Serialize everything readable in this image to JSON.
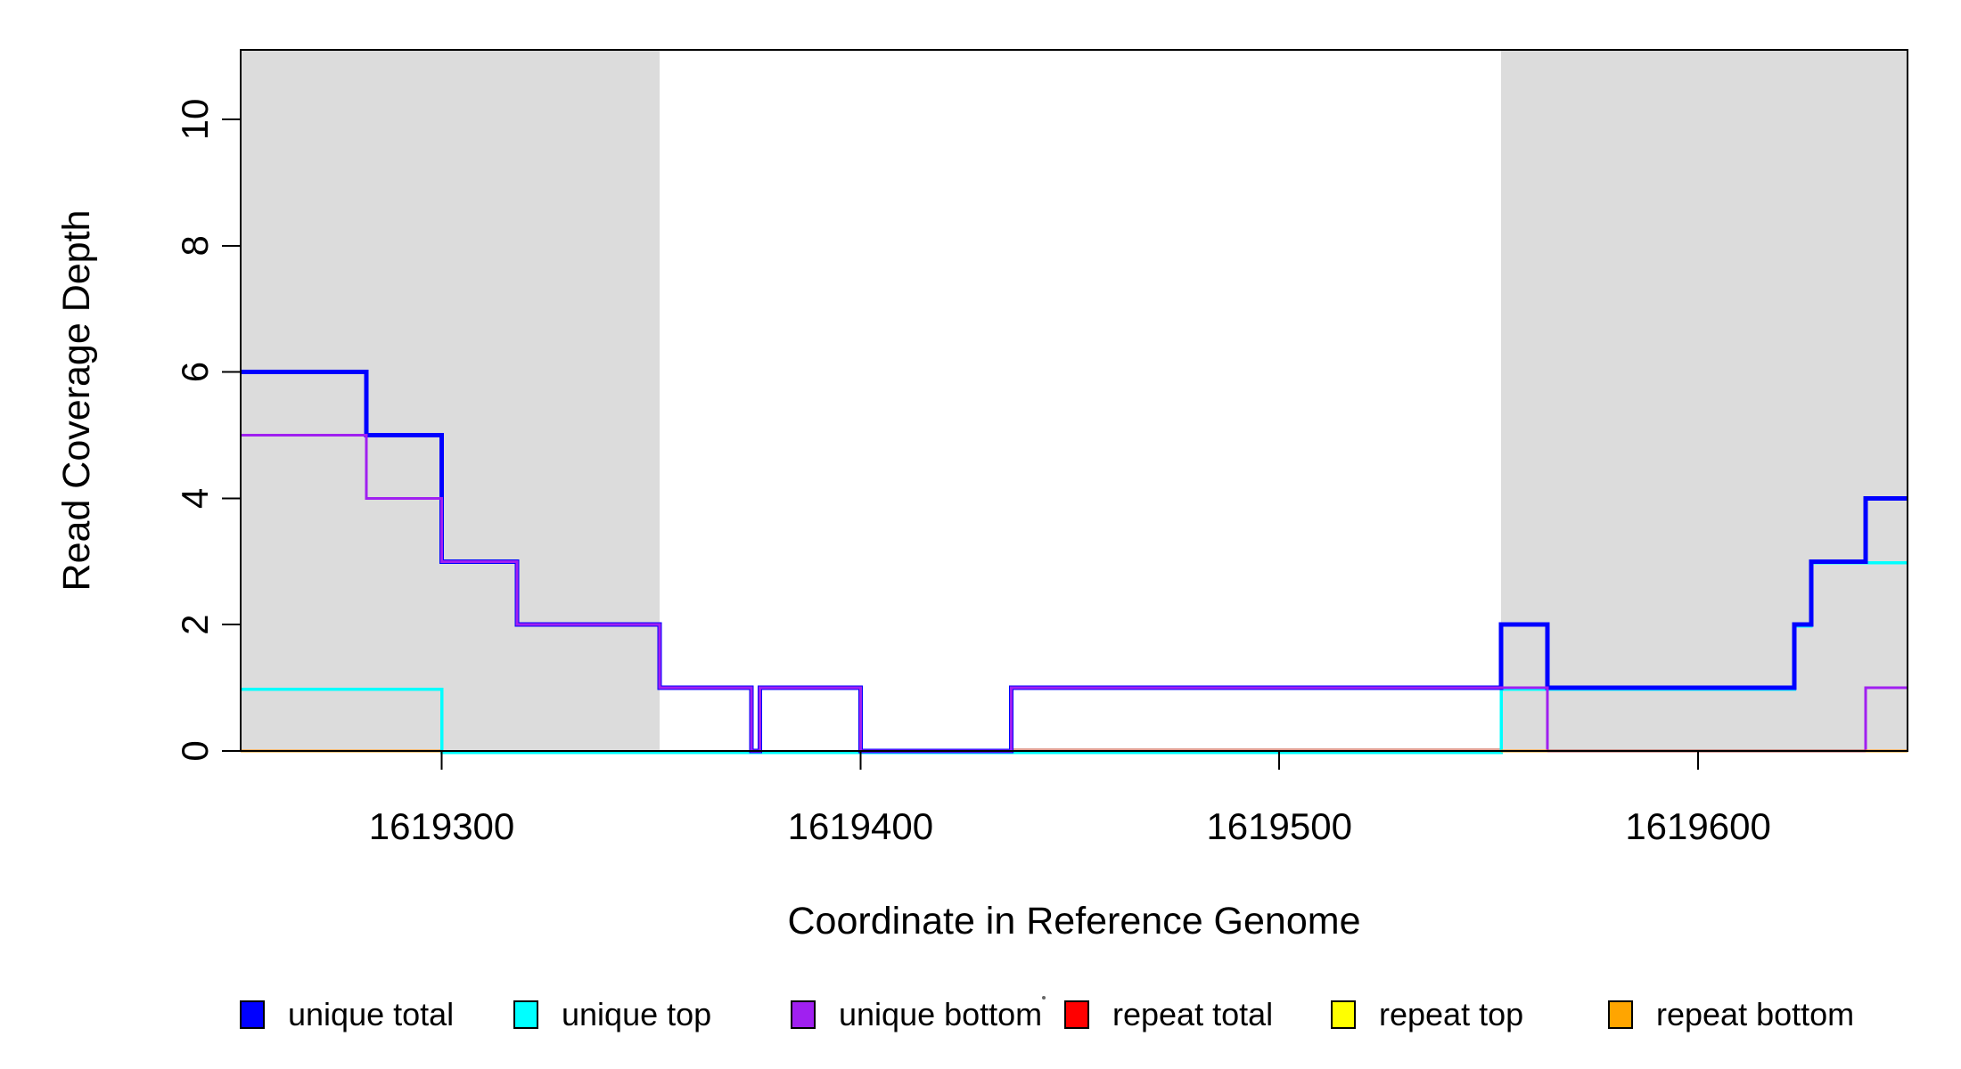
{
  "chart_data": {
    "type": "line",
    "subtype": "step-coverage",
    "title": "",
    "xlabel": "Coordinate in Reference Genome",
    "ylabel": "Read Coverage Depth",
    "xlim": [
      1619252,
      1619650
    ],
    "ylim": [
      0,
      11.1
    ],
    "x_ticks": [
      1619300,
      1619400,
      1619500,
      1619600
    ],
    "y_ticks": [
      0,
      2,
      4,
      6,
      8,
      10
    ],
    "grid": false,
    "legend_position": "bottom",
    "background_color": "#ffffff",
    "mask_color": "#DCDCDC",
    "axis_color": "#000000",
    "masked_regions": [
      [
        1619252,
        1619352
      ],
      [
        1619553,
        1619650
      ]
    ],
    "series": [
      {
        "name": "unique top",
        "color": "#00FFFF",
        "line_width": 3.5,
        "dy": 1.5,
        "render": true,
        "steps": [
          [
            1619252,
            1
          ],
          [
            1619300,
            0
          ],
          [
            1619553,
            1
          ],
          [
            1619623,
            2
          ],
          [
            1619627,
            3
          ]
        ]
      },
      {
        "name": "unique total",
        "color": "#0000FF",
        "line_width": 5,
        "dy": 0,
        "render": true,
        "steps": [
          [
            1619252,
            6
          ],
          [
            1619282,
            5
          ],
          [
            1619300,
            3
          ],
          [
            1619318,
            2
          ],
          [
            1619352,
            1
          ],
          [
            1619374,
            0
          ],
          [
            1619376,
            1
          ],
          [
            1619400,
            0
          ],
          [
            1619436,
            1
          ],
          [
            1619553,
            2
          ],
          [
            1619564,
            1
          ],
          [
            1619623,
            2
          ],
          [
            1619627,
            3
          ],
          [
            1619640,
            4
          ]
        ]
      },
      {
        "name": "unique bottom",
        "color": "#A020F0",
        "line_width": 3,
        "dy": 0,
        "render": true,
        "steps": [
          [
            1619252,
            5
          ],
          [
            1619282,
            4
          ],
          [
            1619300,
            3
          ],
          [
            1619318,
            2
          ],
          [
            1619352,
            1
          ],
          [
            1619374,
            0
          ],
          [
            1619376,
            1
          ],
          [
            1619400,
            0
          ],
          [
            1619436,
            1
          ],
          [
            1619564,
            0
          ],
          [
            1619640,
            1
          ]
        ]
      },
      {
        "name": "repeat total",
        "color": "#FF0000",
        "line_width": 2,
        "dy": 0,
        "render": false,
        "steps": [
          [
            1619252,
            0
          ]
        ]
      },
      {
        "name": "repeat top",
        "color": "#FFFF00",
        "line_width": 2,
        "dy": 0,
        "render": false,
        "steps": [
          [
            1619252,
            0
          ]
        ]
      },
      {
        "name": "repeat bottom",
        "color": "#FFA500",
        "line_width": 2,
        "dy": 0,
        "render": false,
        "steps": [
          [
            1619252,
            0
          ]
        ]
      }
    ],
    "zero_line_segments": [
      {
        "x1": 1619252,
        "x2": 1619300,
        "color": "#FF8C00",
        "width": 3,
        "dy": 0,
        "layer": "under"
      },
      {
        "x1": 1619436,
        "x2": 1619553,
        "color": "#E0A094",
        "width": 2,
        "dy": -2,
        "layer": "under"
      },
      {
        "x1": 1619300,
        "x2": 1619553,
        "color": "#7E7E00",
        "width": 2.5,
        "dy": 0,
        "layer": "under"
      },
      {
        "x1": 1619553,
        "x2": 1619564,
        "color": "#FF8C00",
        "width": 3,
        "dy": 0,
        "layer": "over"
      },
      {
        "x1": 1619564,
        "x2": 1619640,
        "color": "#B04A3C",
        "width": 3,
        "dy": 0,
        "layer": "over"
      },
      {
        "x1": 1619640,
        "x2": 1619650,
        "color": "#FF8C00",
        "width": 3,
        "dy": 0,
        "layer": "over"
      }
    ],
    "stray_mark": {
      "x": 1171,
      "y": 1120,
      "radius": 2,
      "color": "#666666"
    }
  },
  "legend": {
    "items": [
      {
        "label": "unique total",
        "color": "#0000FF"
      },
      {
        "label": "unique top",
        "color": "#00FFFF"
      },
      {
        "label": "unique bottom",
        "color": "#A020F0"
      },
      {
        "label": "repeat total",
        "color": "#FF0000"
      },
      {
        "label": "repeat top",
        "color": "#FFFF00"
      },
      {
        "label": "repeat bottom",
        "color": "#FFA500"
      }
    ]
  }
}
